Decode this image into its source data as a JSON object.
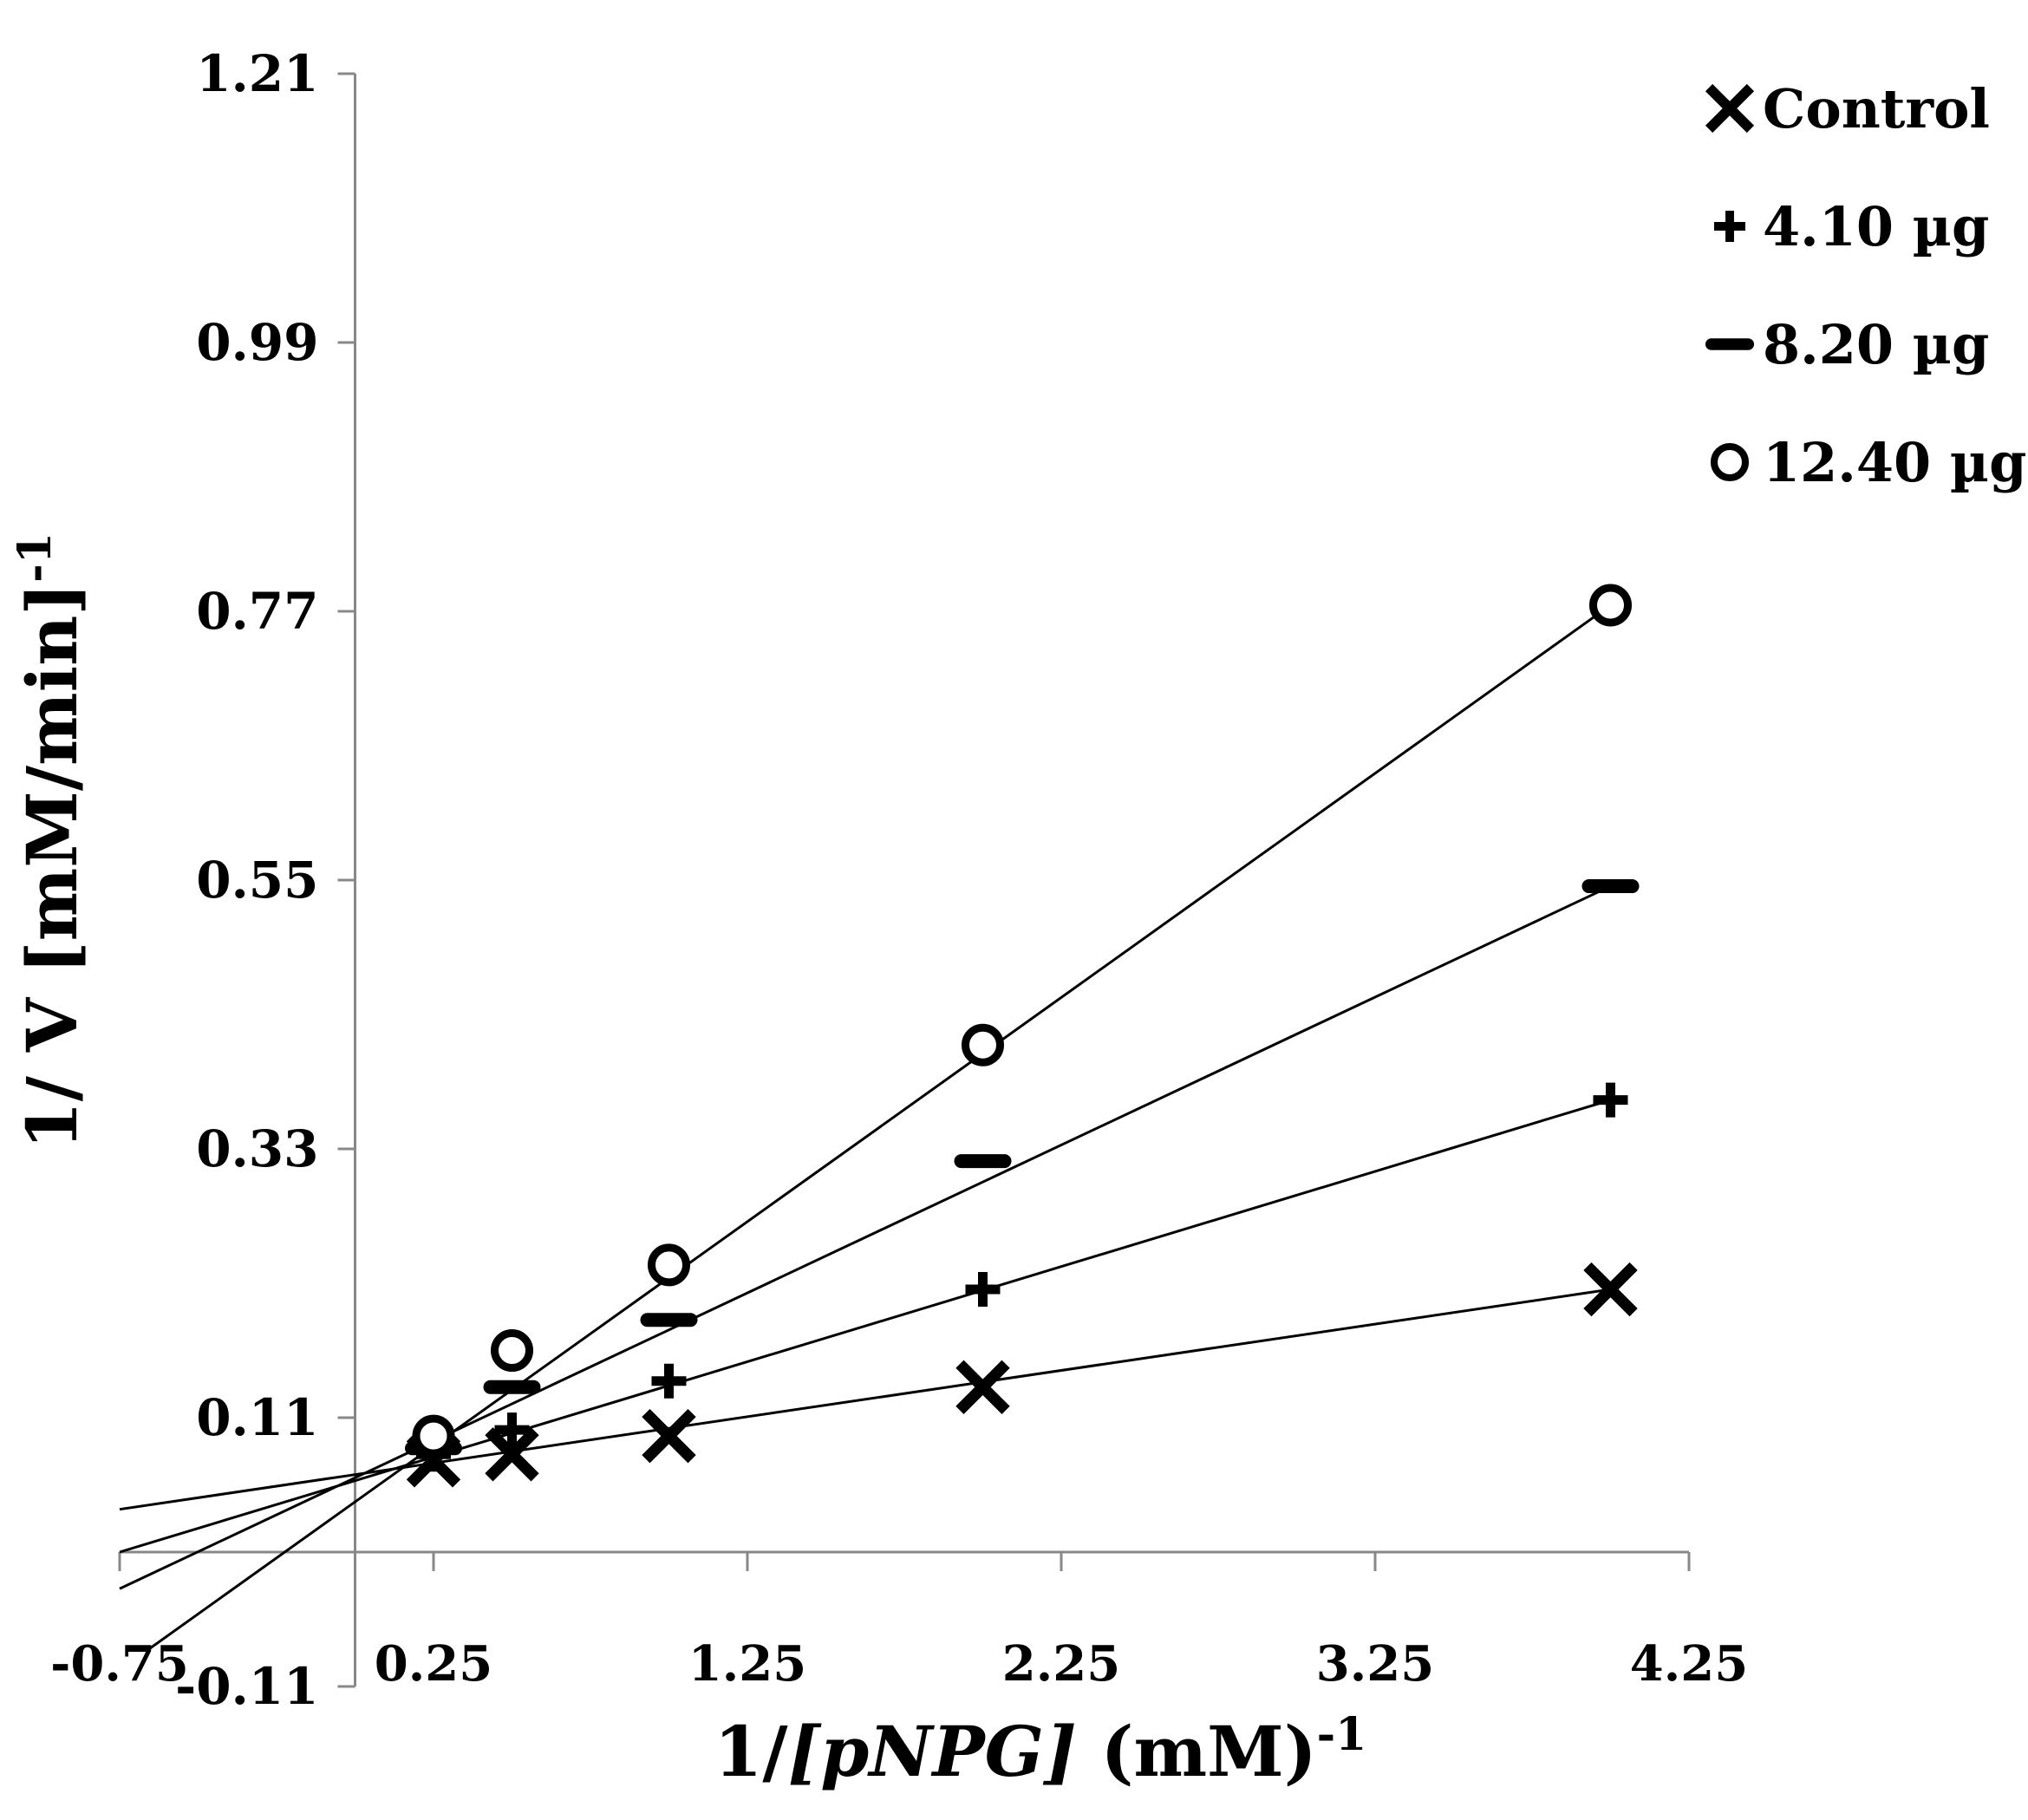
{
  "chart_data": {
    "type": "scatter",
    "title": "",
    "ylabel": "1/ V [mM/min]",
    "ylabel_sup": "-1",
    "xlabel_prefix": "1/",
    "xlabel_italic": "[pNPG]",
    "xlabel_suffix": " (mM)",
    "xlabel_sup": "-1",
    "xlim": [
      -0.75,
      4.25
    ],
    "ylim": [
      -0.11,
      1.21
    ],
    "x_axis_ticks": [
      "-0.75",
      "0.25",
      "1.25",
      "2.25",
      "3.25",
      "4.25"
    ],
    "y_axis_ticks": [
      "-0.11",
      "0.11",
      "0.33",
      "0.55",
      "0.77",
      "0.99",
      "1.21"
    ],
    "grid": false,
    "legend_position": "top-right",
    "series": [
      {
        "name": "Control",
        "marker": "x",
        "x": [
          0.25,
          0.5,
          1.0,
          2.0,
          4.0
        ],
        "y": [
          0.075,
          0.08,
          0.095,
          0.135,
          0.215
        ],
        "fit": {
          "x_start": -0.75,
          "x_end": 4.0,
          "y_start": 0.035,
          "y_end": 0.215
        }
      },
      {
        "name": "4.10 µg",
        "marker": "plus",
        "x": [
          0.25,
          0.5,
          1.0,
          2.0,
          4.0
        ],
        "y": [
          0.08,
          0.1,
          0.14,
          0.215,
          0.37
        ],
        "fit": {
          "x_start": -0.75,
          "x_end": 4.0,
          "y_start": 0.0,
          "y_end": 0.37
        }
      },
      {
        "name": "8.20 µg",
        "marker": "minus",
        "x": [
          0.25,
          0.5,
          1.0,
          2.0,
          4.0
        ],
        "y": [
          0.085,
          0.135,
          0.19,
          0.32,
          0.545
        ],
        "fit": {
          "x_start": -0.75,
          "x_end": 4.0,
          "y_start": -0.03,
          "y_end": 0.545
        }
      },
      {
        "name": "12.40 µg",
        "marker": "circle",
        "x": [
          0.25,
          0.5,
          1.0,
          2.0,
          4.0
        ],
        "y": [
          0.095,
          0.165,
          0.235,
          0.415,
          0.775
        ],
        "fit": {
          "x_start": -0.66,
          "x_end": 4.0,
          "y_start": -0.08,
          "y_end": 0.775
        }
      }
    ]
  }
}
